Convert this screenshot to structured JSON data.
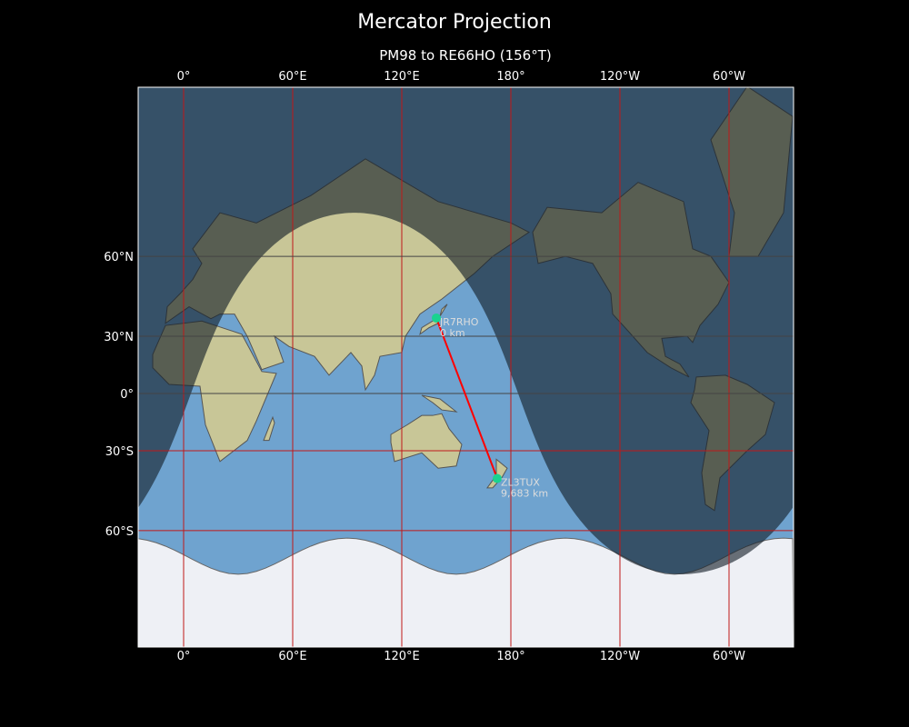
{
  "title": "Mercator Projection",
  "subtitle": "PM98 to RE66HO (156°T)",
  "map": {
    "projection": "mercator",
    "lon_range": [
      -25,
      335
    ],
    "lat_range": [
      -80,
      84.5
    ],
    "lon_ticks": [
      {
        "lon": 0,
        "label": "0°"
      },
      {
        "lon": 60,
        "label": "60°E"
      },
      {
        "lon": 120,
        "label": "120°E"
      },
      {
        "lon": 180,
        "label": "180°"
      },
      {
        "lon": 240,
        "label": "120°W"
      },
      {
        "lon": 300,
        "label": "60°W"
      }
    ],
    "lat_ticks": [
      {
        "lat": 60,
        "label": "60°N"
      },
      {
        "lat": 30,
        "label": "30°N"
      },
      {
        "lat": 0,
        "label": "0°"
      },
      {
        "lat": -30,
        "label": "30°S"
      },
      {
        "lat": -60,
        "label": "60°S"
      }
    ],
    "subsolar_point": {
      "lon": 94,
      "lat": -20
    },
    "stations": [
      {
        "call": "JR7RHO",
        "distance": "0 km",
        "lon": 139,
        "lat": 38.3
      },
      {
        "call": "ZL3TUX",
        "distance": "9,683 km",
        "lon": 172.5,
        "lat": -42.3
      }
    ],
    "colors": {
      "ocean": "#6fa3cf",
      "land": "#c8c697",
      "ice": "#eef0f5",
      "night": "rgba(20,30,40,0.62)",
      "grid": "#c01818",
      "path": "#ff0000",
      "marker": "#19d38f"
    }
  }
}
